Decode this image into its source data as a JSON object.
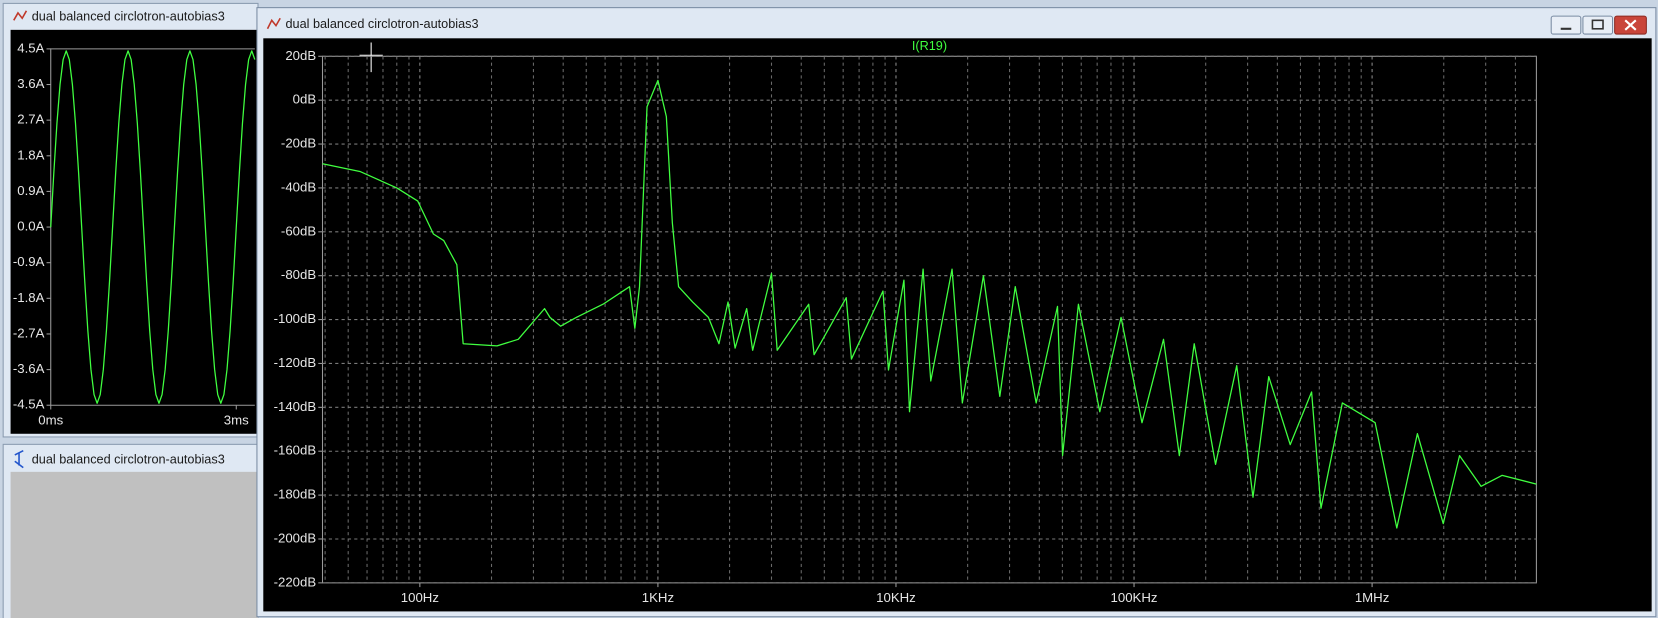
{
  "windows": [
    {
      "title": "dual balanced circlotron-autobias3"
    },
    {
      "title": "dual balanced circlotron-autobias3"
    },
    {
      "title": "dual balanced circlotron-autobias3"
    }
  ],
  "chart_data": [
    {
      "type": "line",
      "color": "#40ff40",
      "grid": false,
      "xscale": "linear",
      "xlim": [
        0,
        3.3
      ],
      "ylim": [
        -4.5,
        4.5
      ],
      "xticks": [
        {
          "value": 0,
          "label": "0ms"
        },
        {
          "value": 3,
          "label": "3ms"
        }
      ],
      "yticks": [
        {
          "value": 4.5,
          "label": "4.5A"
        },
        {
          "value": 3.6,
          "label": "3.6A"
        },
        {
          "value": 2.7,
          "label": "2.7A"
        },
        {
          "value": 1.8,
          "label": "1.8A"
        },
        {
          "value": 0.9,
          "label": "0.9A"
        },
        {
          "value": 0,
          "label": "0.0A"
        },
        {
          "value": -0.9,
          "label": "-0.9A"
        },
        {
          "value": -1.8,
          "label": "-1.8A"
        },
        {
          "value": -2.7,
          "label": "-2.7A"
        },
        {
          "value": -3.6,
          "label": "-3.6A"
        },
        {
          "value": -4.5,
          "label": "-4.5A"
        }
      ],
      "x": [
        0,
        0.05,
        0.1,
        0.15,
        0.2,
        0.25,
        0.3,
        0.35,
        0.4,
        0.45,
        0.5,
        0.55,
        0.6,
        0.65,
        0.7,
        0.75,
        0.8,
        0.85,
        0.9,
        0.95,
        1,
        1.05,
        1.1,
        1.15,
        1.2,
        1.25,
        1.3,
        1.35,
        1.4,
        1.45,
        1.5,
        1.55,
        1.6,
        1.65,
        1.7,
        1.75,
        1.8,
        1.85,
        1.9,
        1.95,
        2,
        2.05,
        2.1,
        2.15,
        2.2,
        2.25,
        2.3,
        2.35,
        2.4,
        2.45,
        2.5,
        2.55,
        2.6,
        2.65,
        2.7,
        2.75,
        2.8,
        2.85,
        2.9,
        2.95,
        3,
        3.05,
        3.1,
        3.15,
        3.2,
        3.25,
        3.3
      ],
      "values": [
        0,
        1.38,
        2.62,
        3.6,
        4.23,
        4.45,
        4.23,
        3.6,
        2.62,
        1.38,
        0,
        -1.38,
        -2.62,
        -3.6,
        -4.23,
        -4.45,
        -4.23,
        -3.6,
        -2.62,
        -1.38,
        0,
        1.38,
        2.62,
        3.6,
        4.23,
        4.45,
        4.23,
        3.6,
        2.62,
        1.38,
        0,
        -1.38,
        -2.62,
        -3.6,
        -4.23,
        -4.45,
        -4.23,
        -3.6,
        -2.62,
        -1.38,
        0,
        1.38,
        2.62,
        3.6,
        4.23,
        4.45,
        4.23,
        3.6,
        2.62,
        1.38,
        0,
        -1.38,
        -2.62,
        -3.6,
        -4.23,
        -4.45,
        -4.23,
        -3.6,
        -2.62,
        -1.38,
        0,
        1.38,
        2.62,
        3.6,
        4.23,
        4.45,
        4.23
      ]
    },
    {
      "type": "line",
      "title": "I(R19)",
      "color": "#40ff40",
      "grid": true,
      "minor_grid": true,
      "xscale": "log",
      "xlim": [
        39,
        4900000
      ],
      "ylim": [
        -220,
        20
      ],
      "xticks": [
        {
          "value": 100,
          "label": "100Hz"
        },
        {
          "value": 1000,
          "label": "1KHz"
        },
        {
          "value": 10000,
          "label": "10KHz"
        },
        {
          "value": 100000,
          "label": "100KHz"
        },
        {
          "value": 1000000,
          "label": "1MHz"
        }
      ],
      "yticks": [
        {
          "value": 20,
          "label": "20dB"
        },
        {
          "value": 0,
          "label": "0dB"
        },
        {
          "value": -20,
          "label": "-20dB"
        },
        {
          "value": -40,
          "label": "-40dB"
        },
        {
          "value": -60,
          "label": "-60dB"
        },
        {
          "value": -80,
          "label": "-80dB"
        },
        {
          "value": -100,
          "label": "-100dB"
        },
        {
          "value": -120,
          "label": "-120dB"
        },
        {
          "value": -140,
          "label": "-140dB"
        },
        {
          "value": -160,
          "label": "-160dB"
        },
        {
          "value": -180,
          "label": "-180dB"
        },
        {
          "value": -200,
          "label": "-200dB"
        },
        {
          "value": -220,
          "label": "-220dB"
        }
      ],
      "x": [
        39,
        56,
        80,
        98,
        114,
        126,
        143,
        152,
        211,
        259,
        334,
        352,
        390,
        454,
        588,
        760,
        800,
        837,
        900,
        1000,
        1085,
        1150,
        1221,
        1400,
        1630,
        1805,
        1970,
        2110,
        2360,
        2500,
        3000,
        3170,
        4300,
        4530,
        6180,
        6500,
        8820,
        9300,
        10800,
        11400,
        13000,
        14000,
        17200,
        19000,
        23300,
        27300,
        31700,
        38800,
        47700,
        50100,
        58400,
        71800,
        88200,
        108000,
        133000,
        155000,
        179000,
        220000,
        270000,
        316000,
        368000,
        453000,
        557000,
        610000,
        750000,
        1030000,
        1270000,
        1550000,
        1990000,
        2330000,
        2870000,
        3520000,
        4900000
      ],
      "values": [
        -29,
        -32.5,
        -40,
        -46,
        -61,
        -64,
        -75,
        -111,
        -112,
        -109,
        -95,
        -99,
        -103,
        -99,
        -93,
        -85,
        -104,
        -85,
        -3,
        9,
        -7.5,
        -56,
        -85,
        -92,
        -99,
        -111,
        -92,
        -113,
        -95,
        -114,
        -79,
        -114,
        -93,
        -116,
        -90,
        -118,
        -87,
        -123,
        -82,
        -142,
        -77,
        -128,
        -77,
        -138,
        -80,
        -135,
        -85,
        -138,
        -94,
        -162,
        -93,
        -142,
        -99,
        -147,
        -109,
        -162,
        -111,
        -166,
        -121,
        -181,
        -126,
        -157,
        -133,
        -186,
        -138,
        -147,
        -195,
        -152,
        -193,
        -162,
        -176,
        -171,
        -175
      ]
    }
  ]
}
